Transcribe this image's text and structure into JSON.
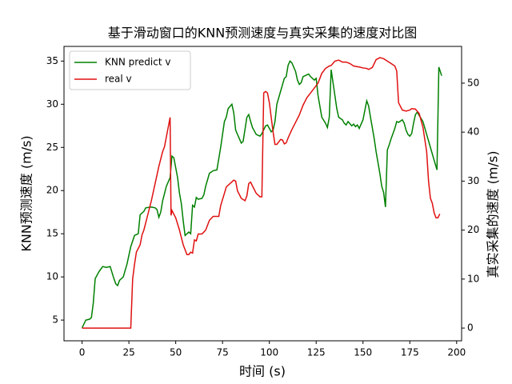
{
  "chart_data": {
    "type": "line",
    "title": "基于滑动窗口的KNN预测速度与真实采集的速度对比图",
    "x_label": "时间 (s)",
    "y_label": "KNN预测速度 (m/s)",
    "y2_label": "真实采集的速度 (m/s)",
    "xlim": [
      -9.65,
      202.65
    ],
    "xticks": [
      0,
      25,
      50,
      75,
      100,
      125,
      150,
      175,
      200
    ],
    "ylim": [
      2.6,
      36.7
    ],
    "yticks": [
      5,
      10,
      15,
      20,
      25,
      30,
      35
    ],
    "y2lim": [
      -2.6,
      57.5
    ],
    "y2ticks": [
      0,
      10,
      20,
      30,
      40,
      50
    ],
    "legend": "upper left",
    "series": [
      {
        "name": "KNN predict v",
        "color": "#008000",
        "axis": "y",
        "x": [
          0,
          2,
          4,
          5,
          6,
          7,
          9,
          11,
          13,
          15,
          17,
          18,
          19,
          20,
          22,
          24,
          26,
          28,
          30,
          31,
          33,
          34,
          37,
          39,
          40,
          41,
          42,
          43,
          45,
          46,
          47,
          48,
          49,
          51,
          52,
          53,
          54,
          55,
          57,
          58,
          59,
          60,
          61,
          62,
          64,
          65,
          66,
          68,
          70,
          72,
          74,
          76,
          77,
          78,
          80,
          81,
          82,
          84,
          85,
          86,
          88,
          89,
          90,
          91,
          93,
          95,
          96,
          98,
          99,
          100,
          101,
          102,
          103,
          104,
          106,
          108,
          109,
          110,
          111,
          112,
          114,
          115,
          116,
          117,
          118,
          120,
          121,
          122,
          124,
          125,
          126,
          128,
          130,
          131,
          132,
          133,
          134,
          136,
          137,
          139,
          140,
          141,
          142,
          144,
          145,
          146,
          147,
          148,
          150,
          152,
          153,
          154,
          156,
          157,
          159,
          160,
          161,
          162,
          163,
          164,
          165,
          167,
          168,
          169,
          171,
          172,
          173,
          174,
          175,
          176,
          177,
          178,
          179,
          180,
          182,
          184,
          186,
          188,
          189.5,
          190.5,
          192
        ],
        "values": [
          4.1,
          5.0,
          5.1,
          5.3,
          7.0,
          9.8,
          10.6,
          11.2,
          11.1,
          11.2,
          9.8,
          9.2,
          9.0,
          9.6,
          10.0,
          11.5,
          13.5,
          14.8,
          15.0,
          17.2,
          17.6,
          18.0,
          18.1,
          18.0,
          17.8,
          16.9,
          17.5,
          18.8,
          20.5,
          21.0,
          21.5,
          24.0,
          23.8,
          21.5,
          19.7,
          18.5,
          16.5,
          14.8,
          15.2,
          15.0,
          18.3,
          18.1,
          19.2,
          19.0,
          19.1,
          19.5,
          20.5,
          22.0,
          22.3,
          22.4,
          25.0,
          28.0,
          28.5,
          29.5,
          30.0,
          29.0,
          27.0,
          26.0,
          25.5,
          25.7,
          28.5,
          28.8,
          28.0,
          27.3,
          26.5,
          26.3,
          26.6,
          27.5,
          27.6,
          27.2,
          26.8,
          27.0,
          28.0,
          30.0,
          31.5,
          33.0,
          33.2,
          34.5,
          35.0,
          34.8,
          33.8,
          32.8,
          32.3,
          32.5,
          33.2,
          33.4,
          33.5,
          33.2,
          32.8,
          33.0,
          31.0,
          28.5,
          27.8,
          27.3,
          28.5,
          34.0,
          32.5,
          29.5,
          28.5,
          28.2,
          27.8,
          27.6,
          28.0,
          27.5,
          27.7,
          27.4,
          27.6,
          27.2,
          28.2,
          30.4,
          29.8,
          28.5,
          26.0,
          24.5,
          22.0,
          20.5,
          19.8,
          18.1,
          24.7,
          25.3,
          26.0,
          27.2,
          28.0,
          27.9,
          28.2,
          27.8,
          27.0,
          26.5,
          26.3,
          26.6,
          27.8,
          28.8,
          29.1,
          28.7,
          28.0,
          26.5,
          25.0,
          23.5,
          22.4,
          34.3,
          33.3
        ]
      },
      {
        "name": "real v",
        "color": "#e01010",
        "axis": "y2",
        "x": [
          0,
          26,
          27,
          28,
          29,
          31,
          32,
          33,
          35,
          37,
          39,
          41,
          43,
          44,
          45,
          46,
          47,
          47.5,
          48,
          50,
          52,
          54,
          56,
          57,
          58,
          59,
          60,
          61,
          62,
          64,
          66,
          68,
          70,
          73,
          74,
          76,
          77,
          79,
          81,
          82,
          83,
          85,
          87,
          88,
          89,
          90,
          91,
          93,
          95,
          96,
          97,
          98,
          99,
          100,
          101,
          102,
          103,
          104,
          106,
          107,
          108,
          109,
          110,
          112,
          114,
          116,
          118,
          120,
          122,
          124,
          126,
          128,
          130,
          132,
          133,
          135,
          137,
          139,
          141,
          143,
          145,
          148,
          150,
          152,
          153,
          155,
          157,
          159,
          161,
          163,
          165,
          167,
          168,
          169,
          171,
          173,
          175,
          176,
          178,
          180,
          182,
          184,
          185,
          186,
          187,
          188,
          189,
          190,
          191
        ],
        "values": [
          0,
          0,
          10,
          13,
          15.5,
          17,
          19,
          20,
          23,
          26,
          29.5,
          33,
          36,
          37,
          39,
          41,
          43,
          23,
          24,
          22.5,
          20,
          17,
          15,
          15,
          15.5,
          15.3,
          18,
          17.8,
          19.2,
          19.2,
          20,
          22,
          22.8,
          22.8,
          25,
          27.5,
          28.8,
          29.5,
          30.2,
          30,
          28,
          26.5,
          26,
          27,
          29.5,
          29.8,
          29,
          27.5,
          26.8,
          26.8,
          48,
          48.3,
          48,
          46,
          43,
          40,
          37.5,
          37.5,
          38.5,
          38.4,
          37.6,
          37.8,
          38.8,
          40.5,
          42,
          43.5,
          45.5,
          47,
          48,
          49,
          50,
          52,
          53,
          53.5,
          53.6,
          54.5,
          54.7,
          54.3,
          54.3,
          54,
          53.5,
          53.3,
          53.1,
          53,
          52.8,
          53.2,
          54.8,
          55.2,
          55,
          54.5,
          54,
          53.5,
          52.5,
          46,
          44.5,
          44.3,
          44.5,
          44.8,
          44.7,
          43.8,
          41,
          36,
          30,
          26.5,
          25.5,
          23.5,
          22.5,
          22.5,
          23.3
        ]
      }
    ]
  }
}
